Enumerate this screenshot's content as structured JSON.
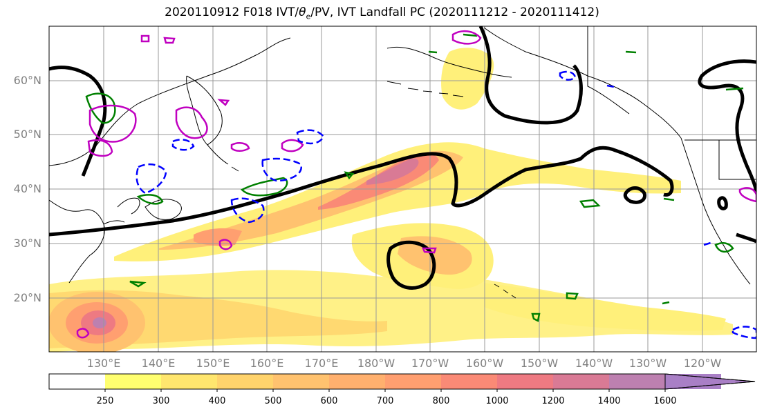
{
  "title": {
    "prefix": "2020110912 F018 IVT/",
    "theta": "θ",
    "theta_sub": "e",
    "suffix": "/PV, IVT Landfall PC (2020111212 - 2020111412)"
  },
  "map": {
    "lat_labels": [
      "60°N",
      "50°N",
      "40°N",
      "30°N",
      "20°N"
    ],
    "lon_labels": [
      "130°E",
      "140°E",
      "150°E",
      "160°E",
      "170°E",
      "180°W",
      "170°W",
      "160°W",
      "150°W",
      "140°W",
      "130°W",
      "120°W"
    ]
  },
  "colorbar": {
    "levels": [
      "250",
      "300",
      "400",
      "500",
      "600",
      "700",
      "800",
      "1000",
      "1200",
      "1400",
      "1600"
    ],
    "colors": [
      "#ffffff",
      "#ffff70",
      "#ffe66e",
      "#ffd36c",
      "#ffc26f",
      "#ffb06e",
      "#ff9f70",
      "#fa8a76",
      "#ee7a82",
      "#d97a95",
      "#bd80b0",
      "#a97fc6"
    ]
  },
  "contour_colors": {
    "ivt_pc": "#000000",
    "theta_e": "#008000",
    "pv_positive": "#c000c0",
    "pv_negative": "#0000ff"
  }
}
